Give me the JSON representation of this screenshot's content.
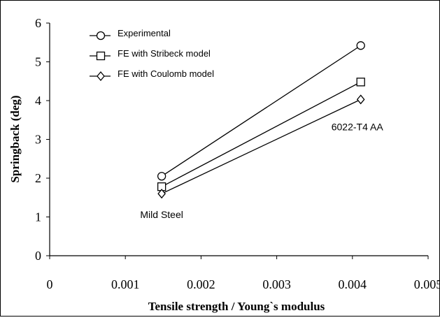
{
  "chart_data": {
    "type": "line",
    "title": "",
    "xlabel": "Tensile strength / Young`s modulus",
    "ylabel": "Springback (deg)",
    "xlim": [
      0,
      0.005
    ],
    "ylim": [
      0,
      6
    ],
    "x_ticks": [
      "0",
      "0.001",
      "0.002",
      "0.003",
      "0.004",
      "0.005"
    ],
    "y_ticks": [
      "0",
      "1",
      "2",
      "3",
      "4",
      "5",
      "6"
    ],
    "grid": false,
    "legend_position": "top-left",
    "x": [
      0.00148,
      0.00411
    ],
    "series": [
      {
        "name": "Experimental",
        "marker": "circle",
        "values": [
          2.05,
          5.42
        ]
      },
      {
        "name": "FE with Stribeck model",
        "marker": "square",
        "values": [
          1.78,
          4.48
        ]
      },
      {
        "name": "FE with Coulomb model",
        "marker": "diamond",
        "values": [
          1.6,
          4.03
        ]
      }
    ],
    "annotations": [
      {
        "text": "Mild Steel",
        "x": 0.00148,
        "y": 1.6
      },
      {
        "text": "6022-T4 AA",
        "x": 0.00411,
        "y": 4.03
      }
    ]
  }
}
